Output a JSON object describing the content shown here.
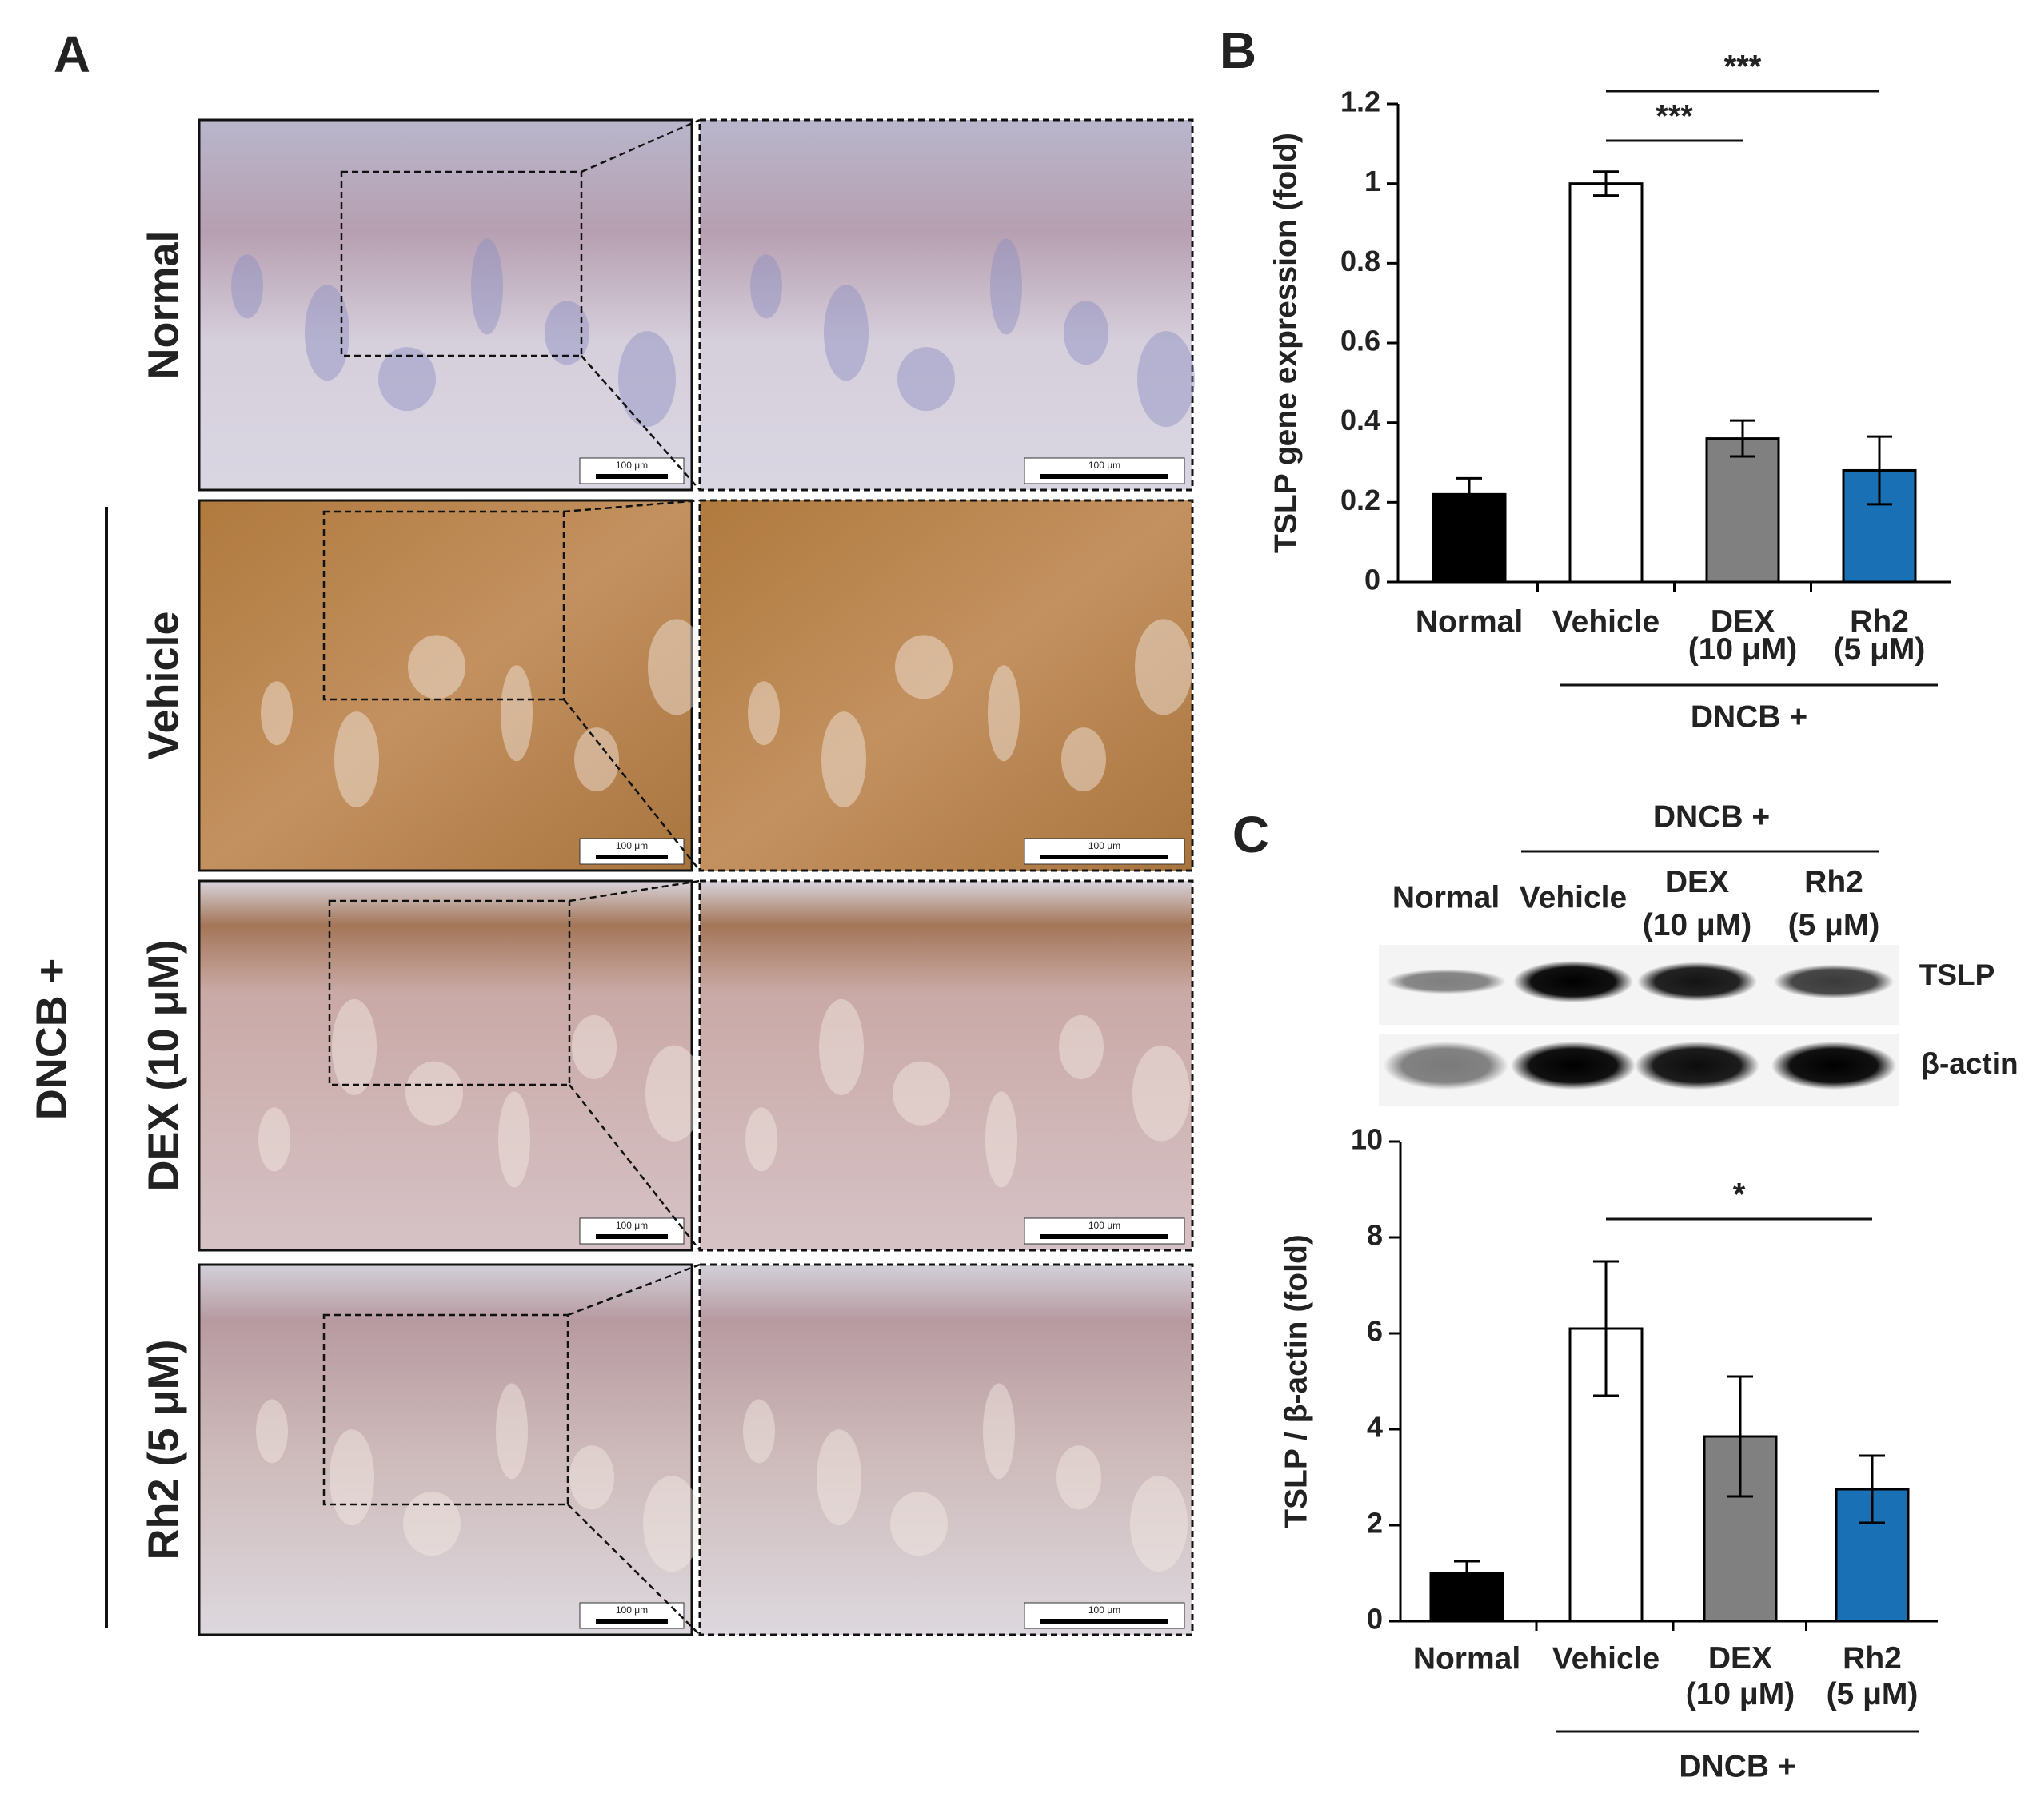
{
  "panel_labels": [
    "A",
    "B",
    "C"
  ],
  "histology": {
    "rows": [
      "Normal",
      "Vehicle",
      "DEX (10 μM)",
      "Rh2 (5 μM)"
    ],
    "group_label": "DNCB +",
    "scale_bar": "100 μm"
  },
  "blot": {
    "group_label": "DNCB +",
    "lanes": [
      "Normal",
      "Vehicle",
      "DEX (10 μM)",
      "Rh2 (5 μM)"
    ],
    "rows": [
      "TSLP",
      "β-actin"
    ]
  },
  "chart_data": [
    {
      "type": "bar",
      "y_label": "TSLP gene expression (fold)",
      "categories": [
        "Normal",
        "Vehicle",
        "DEX (10 μM)",
        "Rh2 (5 μM)"
      ],
      "values": [
        0.22,
        1.0,
        0.36,
        0.28
      ],
      "errors": [
        0.04,
        0.03,
        0.045,
        0.085
      ],
      "colors": [
        "#000000",
        "#ffffff",
        "#808080",
        "#1a70b4"
      ],
      "ylim": [
        0,
        1.2
      ],
      "yticks": [
        0,
        0.2,
        0.4,
        0.6,
        0.8,
        1,
        1.2
      ],
      "group_label": "DNCB +",
      "annotations": [
        "***",
        "***"
      ]
    },
    {
      "type": "bar",
      "y_label": "TSLP / β-actin (fold)",
      "categories": [
        "Normal",
        "Vehicle",
        "DEX (10 μM)",
        "Rh2 (5 μM)"
      ],
      "values": [
        1.0,
        6.1,
        3.85,
        2.75
      ],
      "errors": [
        0.25,
        1.4,
        1.25,
        0.7
      ],
      "colors": [
        "#000000",
        "#ffffff",
        "#808080",
        "#1a70b4"
      ],
      "ylim": [
        0,
        10
      ],
      "yticks": [
        0,
        2,
        4,
        6,
        8,
        10
      ],
      "group_label": "DNCB +",
      "annotations": [
        "*"
      ]
    }
  ]
}
